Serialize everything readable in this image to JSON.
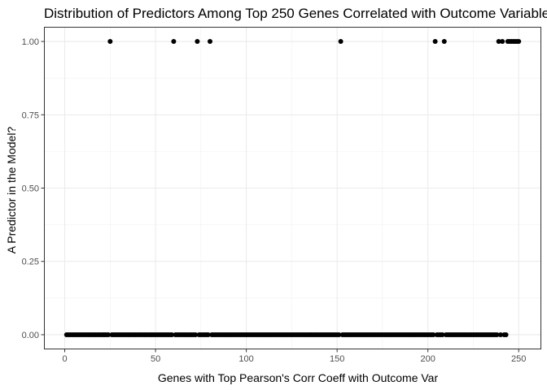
{
  "chart_data": {
    "type": "scatter",
    "title": "Distribution of Predictors Among Top 250 Genes Correlated with Outcome Variable",
    "xlabel": "Genes with Top Pearson's Corr Coeff with Outcome Var",
    "ylabel": "A Predictor in the Model?",
    "xlim": [
      -11.45,
      262.45
    ],
    "ylim": [
      -0.05,
      1.05
    ],
    "x_ticks": [
      0,
      50,
      100,
      150,
      200,
      250
    ],
    "x_tick_labels": [
      "0",
      "50",
      "100",
      "150",
      "200",
      "250"
    ],
    "y_ticks": [
      0,
      0.25,
      0.5,
      0.75,
      1
    ],
    "y_tick_labels": [
      "0.00",
      "0.25",
      "0.50",
      "0.75",
      "1.00"
    ],
    "grid": true,
    "legend": "none",
    "point_color": "#000000",
    "series": [
      {
        "x_range": [
          1,
          250
        ],
        "predictor_ranks": [
          25,
          60,
          73,
          80,
          152,
          204,
          209,
          239,
          241,
          244,
          245,
          246,
          247,
          248,
          249,
          250
        ],
        "y_if_predictor": 1,
        "y_otherwise": 0
      }
    ]
  }
}
